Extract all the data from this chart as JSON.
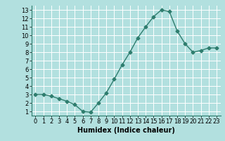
{
  "x": [
    0,
    1,
    2,
    3,
    4,
    5,
    6,
    7,
    8,
    9,
    10,
    11,
    12,
    13,
    14,
    15,
    16,
    17,
    18,
    19,
    20,
    21,
    22,
    23
  ],
  "y": [
    3.0,
    3.0,
    2.8,
    2.5,
    2.2,
    1.8,
    1.0,
    0.9,
    2.0,
    3.2,
    4.8,
    6.5,
    8.0,
    9.7,
    11.0,
    12.2,
    13.0,
    12.8,
    10.5,
    9.0,
    8.0,
    8.2,
    8.5,
    8.5
  ],
  "line_color": "#2e7d6e",
  "marker": "D",
  "marker_size": 2.5,
  "bg_color": "#b2e0df",
  "grid_color": "#ffffff",
  "xlabel": "Humidex (Indice chaleur)",
  "xlim": [
    -0.5,
    23.5
  ],
  "ylim": [
    0.5,
    13.5
  ],
  "yticks": [
    1,
    2,
    3,
    4,
    5,
    6,
    7,
    8,
    9,
    10,
    11,
    12,
    13
  ],
  "xticks": [
    0,
    1,
    2,
    3,
    4,
    5,
    6,
    7,
    8,
    9,
    10,
    11,
    12,
    13,
    14,
    15,
    16,
    17,
    18,
    19,
    20,
    21,
    22,
    23
  ],
  "xlabel_fontsize": 7,
  "tick_fontsize": 6,
  "linewidth": 1.0
}
